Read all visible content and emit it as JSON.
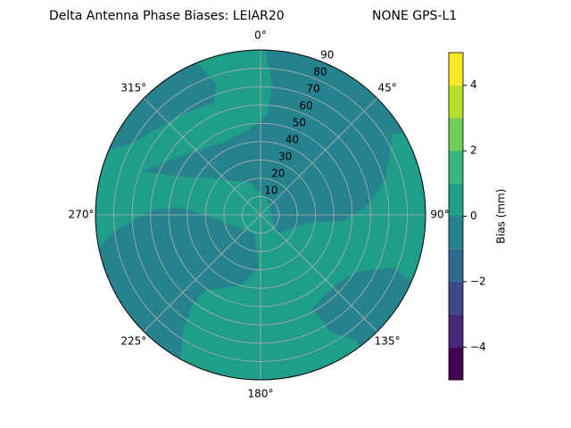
{
  "chart_data": {
    "type": "polar_contour",
    "title": [
      "Delta Antenna Phase Biases: LEIAR20",
      "NONE GPS-L1"
    ],
    "theta_ticks": [
      {
        "value": 0,
        "label": "0°"
      },
      {
        "value": 45,
        "label": "45°"
      },
      {
        "value": 90,
        "label": "90°"
      },
      {
        "value": 135,
        "label": "135°"
      },
      {
        "value": 180,
        "label": "180°"
      },
      {
        "value": 225,
        "label": "225°"
      },
      {
        "value": 270,
        "label": "270°"
      },
      {
        "value": 315,
        "label": "315°"
      }
    ],
    "rlim": [
      0,
      90
    ],
    "rticks": [
      10,
      20,
      30,
      40,
      50,
      60,
      70,
      80,
      90
    ],
    "grid": true,
    "levels": [
      -5,
      -4,
      -3,
      -2,
      -1,
      0,
      1,
      2,
      3,
      4,
      5
    ],
    "level_colors": [
      "#440154",
      "#482878",
      "#3e4989",
      "#31688e",
      "#26828e",
      "#1f9e89",
      "#35b779",
      "#6ece58",
      "#b5de2b",
      "#fde725"
    ],
    "colorbar_label": "Bias (mm)",
    "colorbar_lim": [
      -5,
      5
    ],
    "colorbar_ticks": [
      {
        "value": -4,
        "label": "−4"
      },
      {
        "value": -2,
        "label": "−2"
      },
      0,
      2,
      4
    ]
  }
}
